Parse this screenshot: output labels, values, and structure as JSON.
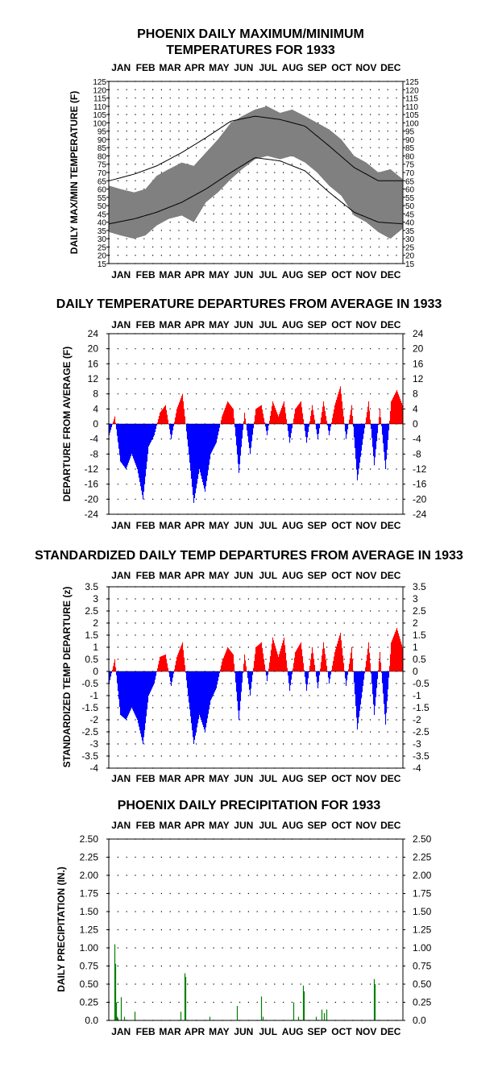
{
  "chart_data": [
    {
      "id": "maxmin",
      "type": "area",
      "title_lines": [
        "PHOENIX DAILY MAXIMUM/MINIMUM",
        "TEMPERATURES FOR 1933"
      ],
      "xlabel": "",
      "ylabel": "DAILY MAX/MIN TEMPERATURE (F)",
      "months": [
        "JAN",
        "FEB",
        "MAR",
        "APR",
        "MAY",
        "JUN",
        "JUL",
        "AUG",
        "SEP",
        "OCT",
        "NOV",
        "DEC"
      ],
      "ylim": [
        15,
        125
      ],
      "yticks": [
        15,
        20,
        25,
        30,
        35,
        40,
        45,
        50,
        55,
        60,
        65,
        70,
        75,
        80,
        85,
        90,
        95,
        100,
        105,
        110,
        115,
        120,
        125
      ],
      "grid": "dotted",
      "colors": {
        "range": "#808080",
        "normal": "#000000"
      },
      "normal_max": {
        "day_of_year": [
          1,
          32,
          60,
          91,
          121,
          152,
          182,
          213,
          244,
          274,
          305,
          335,
          365
        ],
        "values": [
          65,
          69,
          74,
          82,
          91,
          101,
          104,
          102,
          98,
          86,
          73,
          65,
          65
        ]
      },
      "normal_min": {
        "day_of_year": [
          1,
          32,
          60,
          91,
          121,
          152,
          182,
          213,
          244,
          274,
          305,
          335,
          365
        ],
        "values": [
          39,
          42,
          46,
          52,
          60,
          70,
          79,
          77,
          71,
          58,
          46,
          40,
          39
        ]
      },
      "observed_max": {
        "day_of_year": [
          1,
          15,
          32,
          46,
          60,
          75,
          91,
          106,
          121,
          136,
          152,
          166,
          182,
          197,
          213,
          228,
          244,
          259,
          274,
          289,
          305,
          320,
          335,
          350,
          365
        ],
        "values": [
          62,
          60,
          58,
          60,
          68,
          72,
          76,
          74,
          82,
          90,
          100,
          104,
          108,
          110,
          106,
          108,
          104,
          100,
          96,
          90,
          80,
          76,
          70,
          72,
          66
        ]
      },
      "observed_min": {
        "day_of_year": [
          1,
          15,
          32,
          46,
          60,
          75,
          91,
          106,
          121,
          136,
          152,
          166,
          182,
          197,
          213,
          228,
          244,
          259,
          274,
          289,
          305,
          320,
          335,
          350,
          365
        ],
        "values": [
          34,
          32,
          30,
          32,
          38,
          42,
          44,
          40,
          52,
          58,
          66,
          72,
          78,
          80,
          78,
          80,
          76,
          70,
          62,
          56,
          44,
          40,
          34,
          30,
          36
        ]
      }
    },
    {
      "id": "departure",
      "type": "bar",
      "title": "DAILY TEMPERATURE DEPARTURES FROM AVERAGE IN 1933",
      "xlabel": "",
      "ylabel": "DEPARTURE FROM AVERAGE (F)",
      "months": [
        "JAN",
        "FEB",
        "MAR",
        "APR",
        "MAY",
        "JUN",
        "JUL",
        "AUG",
        "SEP",
        "OCT",
        "NOV",
        "DEC"
      ],
      "ylim": [
        -24,
        24
      ],
      "yticks": [
        -24,
        -20,
        -16,
        -12,
        -8,
        -4,
        0,
        4,
        8,
        12,
        16,
        20,
        24
      ],
      "grid": "dotted",
      "colors": {
        "positive": "#ff0000",
        "negative": "#0000ff"
      },
      "day_of_year": [
        1,
        8,
        15,
        22,
        29,
        36,
        43,
        50,
        57,
        64,
        71,
        78,
        85,
        92,
        99,
        106,
        113,
        120,
        127,
        134,
        141,
        148,
        155,
        162,
        169,
        176,
        183,
        190,
        197,
        204,
        211,
        218,
        225,
        232,
        239,
        246,
        253,
        260,
        267,
        274,
        281,
        288,
        295,
        302,
        309,
        316,
        323,
        330,
        337,
        344,
        351,
        358,
        365
      ],
      "values": [
        -3,
        2,
        -10,
        -12,
        -8,
        -12,
        -20,
        -6,
        -3,
        3,
        5,
        -4,
        4,
        8,
        -6,
        -21,
        -12,
        -18,
        -8,
        -5,
        2,
        6,
        4,
        -13,
        3,
        -8,
        4,
        5,
        -3,
        6,
        2,
        6,
        -5,
        4,
        6,
        -5,
        5,
        -4,
        6,
        -3,
        5,
        10,
        -4,
        5,
        -15,
        -4,
        6,
        -11,
        4,
        -12,
        6,
        9,
        5
      ]
    },
    {
      "id": "standardized",
      "type": "bar",
      "title": "STANDARDIZED DAILY TEMP DEPARTURES FROM AVERAGE IN 1933",
      "xlabel": "",
      "ylabel": "STANDARDIZED TEMP DEPARTURE (z)",
      "months": [
        "JAN",
        "FEB",
        "MAR",
        "APR",
        "MAY",
        "JUN",
        "JUL",
        "AUG",
        "SEP",
        "OCT",
        "NOV",
        "DEC"
      ],
      "ylim": [
        -4.0,
        3.5
      ],
      "yticks": [
        -4.0,
        -3.5,
        -3.0,
        -2.5,
        -2.0,
        -1.5,
        -1.0,
        -0.5,
        0.0,
        0.5,
        1.0,
        1.5,
        2.0,
        2.5,
        3.0,
        3.5
      ],
      "grid": "dotted",
      "colors": {
        "positive": "#ff0000",
        "negative": "#0000ff"
      },
      "day_of_year": [
        1,
        8,
        15,
        22,
        29,
        36,
        43,
        50,
        57,
        64,
        71,
        78,
        85,
        92,
        99,
        106,
        113,
        120,
        127,
        134,
        141,
        148,
        155,
        162,
        169,
        176,
        183,
        190,
        197,
        204,
        211,
        218,
        225,
        232,
        239,
        246,
        253,
        260,
        267,
        274,
        281,
        288,
        295,
        302,
        309,
        316,
        323,
        330,
        337,
        344,
        351,
        358,
        365
      ],
      "values": [
        -0.5,
        0.5,
        -1.8,
        -2.0,
        -1.5,
        -2.0,
        -3.0,
        -1.0,
        -0.5,
        0.6,
        0.7,
        -0.6,
        0.6,
        1.2,
        -1.0,
        -3.0,
        -1.8,
        -2.5,
        -1.2,
        -0.7,
        0.4,
        1.0,
        0.7,
        -2.0,
        0.7,
        -1.0,
        1.0,
        1.2,
        -0.4,
        1.4,
        0.6,
        1.4,
        -0.8,
        0.8,
        1.2,
        -0.8,
        1.0,
        -0.7,
        1.2,
        -0.5,
        0.8,
        1.6,
        -0.6,
        1.0,
        -2.4,
        -0.6,
        1.2,
        -1.8,
        0.8,
        -2.2,
        1.2,
        1.8,
        1.0
      ]
    },
    {
      "id": "precip",
      "type": "bar",
      "title": "PHOENIX DAILY PRECIPITATION FOR 1933",
      "xlabel": "",
      "ylabel": "DAILY PRECIPITATION (IN.)",
      "months": [
        "JAN",
        "FEB",
        "MAR",
        "APR",
        "MAY",
        "JUN",
        "JUL",
        "AUG",
        "SEP",
        "OCT",
        "NOV",
        "DEC"
      ],
      "ylim": [
        0.0,
        2.5
      ],
      "yticks": [
        "0.0",
        "0.25",
        "0.50",
        "0.75",
        "1.00",
        "1.25",
        "1.50",
        "1.75",
        "2.00",
        "2.25",
        "2.50"
      ],
      "grid": "dotted",
      "colors": {
        "bar": "#008000"
      },
      "day_of_year": [
        8,
        9,
        10,
        11,
        12,
        16,
        20,
        33,
        90,
        95,
        96,
        126,
        160,
        190,
        192,
        230,
        236,
        242,
        243,
        258,
        265,
        268,
        271,
        330,
        331
      ],
      "values": [
        1.05,
        0.78,
        0.25,
        0.05,
        0.03,
        0.32,
        0.05,
        0.12,
        0.12,
        0.65,
        0.6,
        0.05,
        0.2,
        0.33,
        0.05,
        0.25,
        0.05,
        0.48,
        0.4,
        0.05,
        0.15,
        0.1,
        0.15,
        0.57,
        0.5
      ]
    }
  ]
}
